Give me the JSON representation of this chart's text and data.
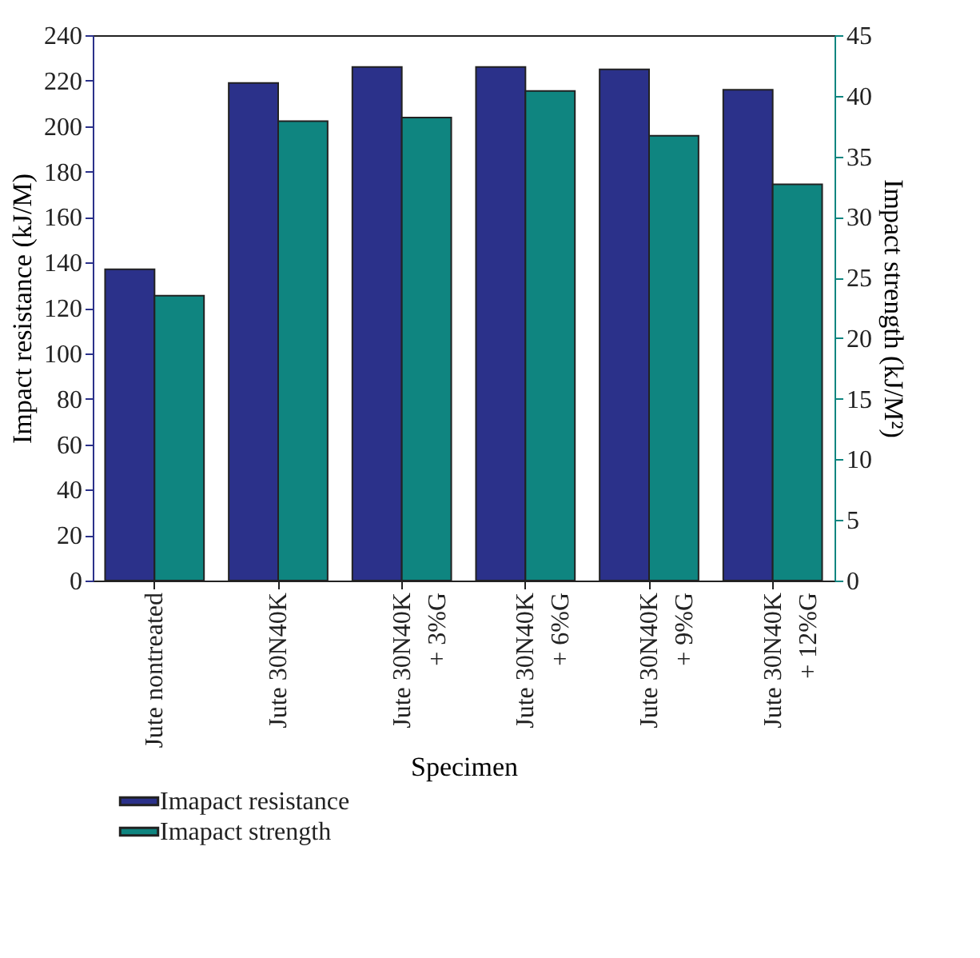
{
  "chart_data": {
    "type": "bar",
    "xlabel": "Specimen",
    "ylabel": "Impact resistance (kJ/M)",
    "y2label": "Impact strength (kJ/M²)",
    "categories": [
      "Jute nontreated",
      "Jute 30N40K",
      "Jute 30N40K\n+ 3%G",
      "Jute 30N40K\n+ 6%G",
      "Jute 30N40K\n+ 9%G",
      "Jute 30N40K\n+ 12%G"
    ],
    "series": [
      {
        "name": "Imapact resistance",
        "color": "#2b318a",
        "values": [
          137,
          219,
          226,
          226,
          225,
          216
        ]
      },
      {
        "name": "Imapact strength",
        "color": "#0f8580",
        "axis": "y2",
        "values": [
          23.5,
          37.9,
          38.2,
          40.4,
          36.7,
          32.7
        ]
      }
    ],
    "ylim": [
      0,
      240
    ],
    "yticks": [
      0,
      20,
      40,
      60,
      80,
      100,
      120,
      140,
      160,
      180,
      200,
      220,
      240
    ],
    "y2lim": [
      0,
      45
    ],
    "y2ticks": [
      0,
      5,
      10,
      15,
      20,
      25,
      30,
      35,
      40,
      45
    ],
    "grid": false,
    "legend": "bottom left"
  }
}
